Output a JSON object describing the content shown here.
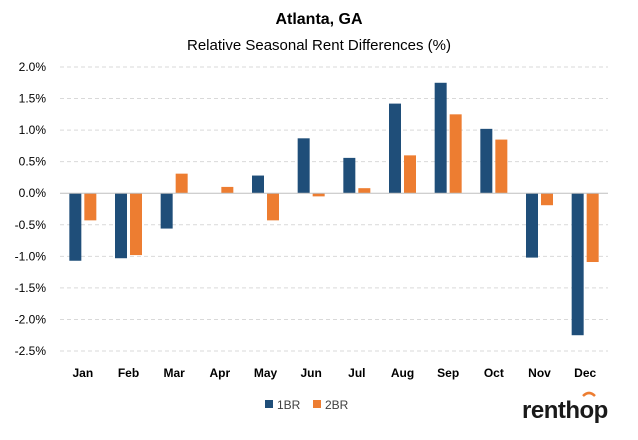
{
  "chart_data": {
    "type": "bar",
    "title": "Atlanta, GA",
    "subtitle": "Relative Seasonal Rent Differences (%)",
    "categories": [
      "Jan",
      "Feb",
      "Mar",
      "Apr",
      "May",
      "Jun",
      "Jul",
      "Aug",
      "Sep",
      "Oct",
      "Nov",
      "Dec"
    ],
    "series": [
      {
        "name": "1BR",
        "color": "#1f4e79",
        "values": [
          -1.07,
          -1.03,
          -0.56,
          0.0,
          0.28,
          0.87,
          0.56,
          1.42,
          1.75,
          1.02,
          -1.02,
          -2.25
        ]
      },
      {
        "name": "2BR",
        "color": "#ed7d31",
        "values": [
          -0.43,
          -0.98,
          0.31,
          0.1,
          -0.43,
          -0.05,
          0.08,
          0.6,
          1.25,
          0.85,
          -0.19,
          -1.09
        ]
      }
    ],
    "ylim": [
      -2.5,
      2.0
    ],
    "yticks": [
      2.0,
      1.5,
      1.0,
      0.5,
      0.0,
      -0.5,
      -1.0,
      -1.5,
      -2.0,
      -2.5
    ],
    "ytick_labels": [
      "2.0%",
      "1.5%",
      "1.0%",
      "0.5%",
      "0.0%",
      "-0.5%",
      "-1.0%",
      "-1.5%",
      "-2.0%",
      "-2.5%"
    ],
    "xlabel": "",
    "ylabel": "",
    "grid": true,
    "legend_position": "bottom",
    "gridline_color": "#d9d9d9"
  },
  "brand": {
    "logo_text": "renthop"
  }
}
